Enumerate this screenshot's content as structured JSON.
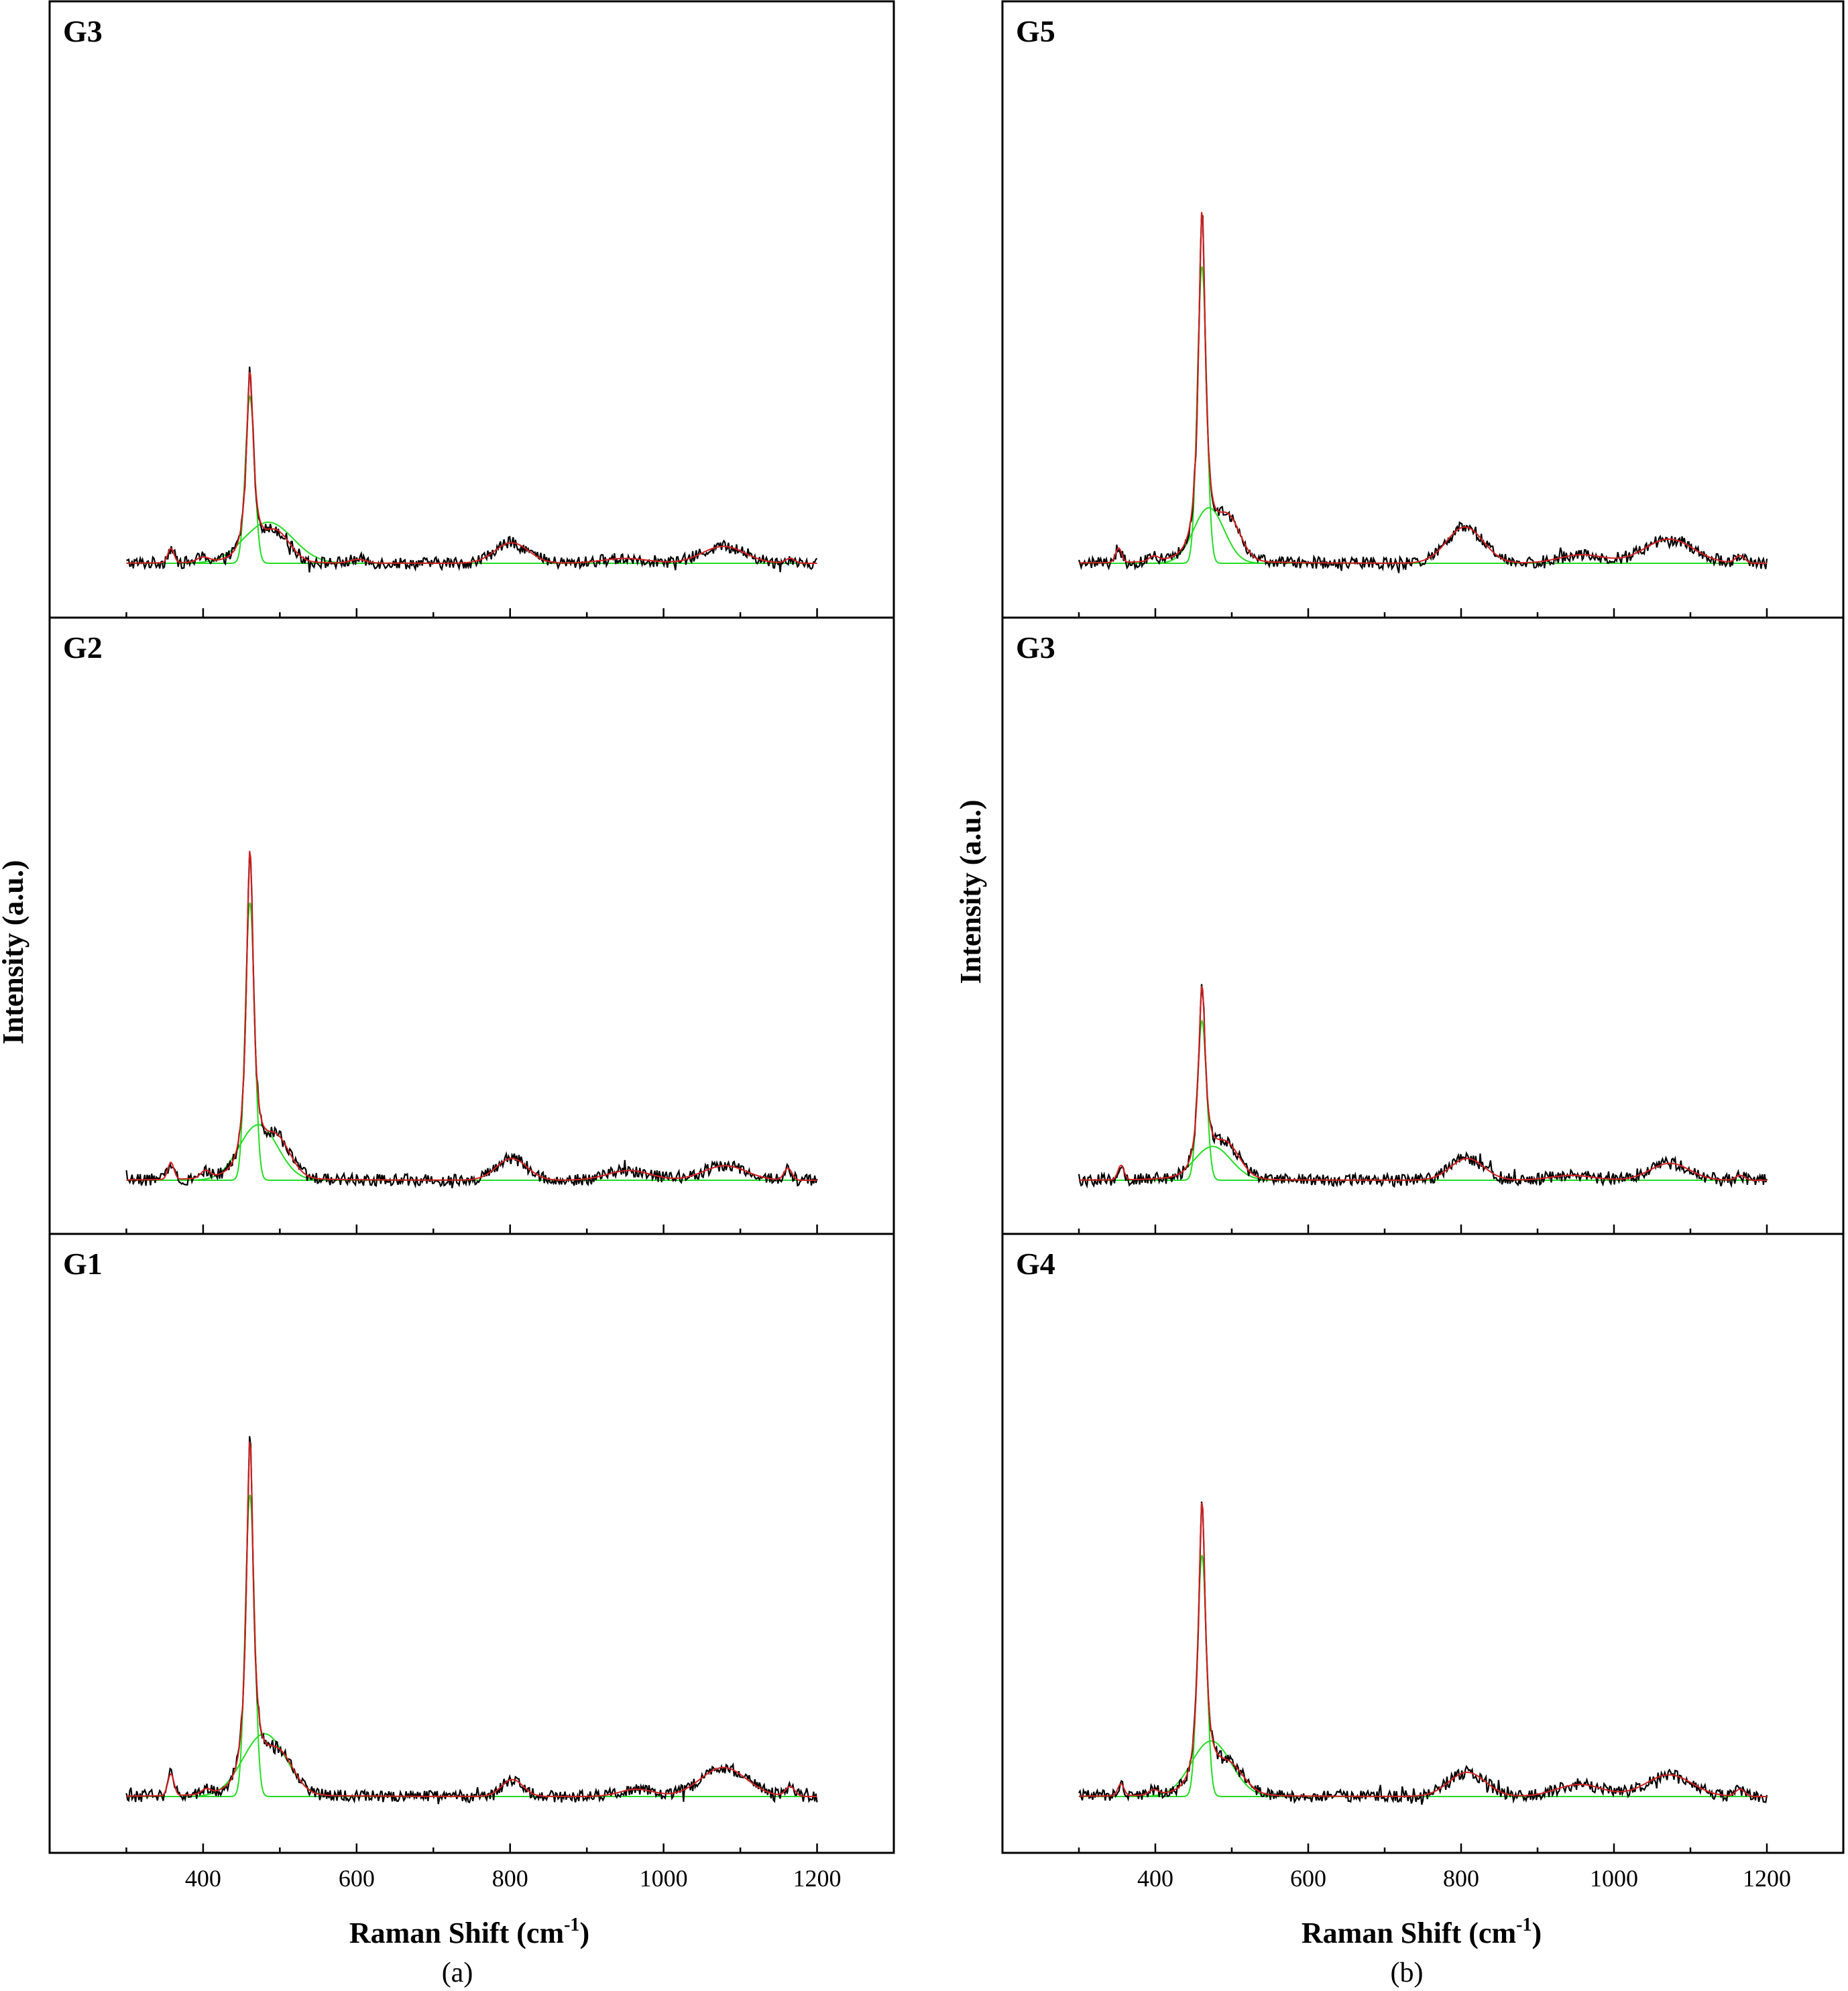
{
  "colors": {
    "measured": "#000000",
    "fit_envelope": "#d62020",
    "fit_components": "#22dd22",
    "frame": "#000000"
  },
  "chart_data": [
    {
      "type": "line",
      "figure": "(a)",
      "title": "",
      "xlabel": "Raman Shift (cm-1)",
      "xlabel_base": "Raman Shift (cm",
      "xlabel_sup": "-1",
      "xlabel_close": ")",
      "ylabel": "Intensity (a.u.)",
      "xlim": [
        200,
        1300
      ],
      "ylim": [
        0,
        1
      ],
      "x_ticks": [
        "400",
        "600",
        "800",
        "1000",
        "1200"
      ],
      "x_tick_values": [
        400,
        600,
        800,
        1000,
        1200
      ],
      "grid": false,
      "panels": [
        {
          "label": "G3",
          "series": [
            {
              "role": "measured",
              "peaks": [
                [
                  358,
                  0.06,
                  4
                ],
                [
                  400,
                  0.02,
                  8
                ],
                [
                  461,
                  0.78,
                  5.5
                ],
                [
                  495,
                  0.12,
                  18
                ],
                [
                  602,
                  0.015,
                  10
                ],
                [
                  802,
                  0.085,
                  22
                ],
                [
                  950,
                  0.02,
                  30
                ],
                [
                  1078,
                  0.07,
                  28
                ],
                [
                  1165,
                  0.02,
                  6
                ]
              ],
              "noise": 0.025
            },
            {
              "role": "fit",
              "components": [
                [
                  461,
                  0.69,
                  6
                ],
                [
                  485,
                  0.17,
                  32
                ]
              ]
            }
          ]
        },
        {
          "label": "G2",
          "series": [
            {
              "role": "measured",
              "peaks": [
                [
                  358,
                  0.07,
                  4
                ],
                [
                  403,
                  0.03,
                  6
                ],
                [
                  461,
                  1.35,
                  5.5
                ],
                [
                  495,
                  0.16,
                  18
                ],
                [
                  802,
                  0.09,
                  20
                ],
                [
                  955,
                  0.04,
                  28
                ],
                [
                  1080,
                  0.06,
                  28
                ],
                [
                  1162,
                  0.05,
                  5
                ]
              ],
              "noise": 0.025
            },
            {
              "role": "fit",
              "components": [
                [
                  461,
                  1.15,
                  6
                ],
                [
                  472,
                  0.23,
                  25
                ]
              ]
            }
          ]
        },
        {
          "label": "G1",
          "series": [
            {
              "role": "measured",
              "peaks": [
                [
                  358,
                  0.09,
                  4
                ],
                [
                  404,
                  0.02,
                  6
                ],
                [
                  461,
                  1.45,
                  5.5
                ],
                [
                  497,
                  0.17,
                  20
                ],
                [
                  803,
                  0.07,
                  14
                ],
                [
                  965,
                  0.03,
                  22
                ],
                [
                  1078,
                  0.12,
                  30
                ],
                [
                  1165,
                  0.04,
                  6
                ]
              ],
              "noise": 0.025
            },
            {
              "role": "fit",
              "components": [
                [
                  461,
                  1.25,
                  6
                ],
                [
                  480,
                  0.26,
                  28
                ]
              ]
            }
          ]
        }
      ]
    },
    {
      "type": "line",
      "figure": "(b)",
      "title": "",
      "xlabel": "Raman Shift (cm-1)",
      "xlabel_base": "Raman Shift (cm",
      "xlabel_sup": "-1",
      "xlabel_close": ")",
      "ylabel": "Intensity (a.u.)",
      "xlim": [
        200,
        1300
      ],
      "ylim": [
        0,
        1
      ],
      "x_ticks": [
        "400",
        "600",
        "800",
        "1000",
        "1200"
      ],
      "x_tick_values": [
        400,
        600,
        800,
        1000,
        1200
      ],
      "grid": false,
      "panels": [
        {
          "label": "G5",
          "series": [
            {
              "role": "measured",
              "peaks": [
                [
                  352,
                  0.06,
                  4
                ],
                [
                  398,
                  0.02,
                  6
                ],
                [
                  461,
                  1.45,
                  5.5
                ],
                [
                  495,
                  0.17,
                  16
                ],
                [
                  805,
                  0.15,
                  24
                ],
                [
                  958,
                  0.035,
                  30
                ],
                [
                  1072,
                  0.1,
                  32
                ],
                [
                  1165,
                  0.03,
                  6
                ]
              ],
              "noise": 0.025
            },
            {
              "role": "fit",
              "components": [
                [
                  461,
                  1.23,
                  6
                ],
                [
                  470,
                  0.23,
                  20
                ]
              ]
            }
          ]
        },
        {
          "label": "G3",
          "series": [
            {
              "role": "measured",
              "peaks": [
                [
                  355,
                  0.06,
                  4
                ],
                [
                  461,
                  0.78,
                  5.5
                ],
                [
                  492,
                  0.14,
                  18
                ],
                [
                  808,
                  0.09,
                  22
                ],
                [
                  945,
                  0.02,
                  28
                ],
                [
                  1073,
                  0.07,
                  26
                ],
                [
                  1165,
                  0.02,
                  6
                ]
              ],
              "noise": 0.025
            },
            {
              "role": "fit",
              "components": [
                [
                  461,
                  0.66,
                  6
                ],
                [
                  475,
                  0.14,
                  24
                ]
              ]
            }
          ]
        },
        {
          "label": "G4",
          "series": [
            {
              "role": "measured",
              "peaks": [
                [
                  355,
                  0.05,
                  4
                ],
                [
                  398,
                  0.02,
                  6
                ],
                [
                  461,
                  1.2,
                  5.5
                ],
                [
                  495,
                  0.12,
                  20
                ],
                [
                  808,
                  0.1,
                  24
                ],
                [
                  955,
                  0.05,
                  30
                ],
                [
                  1072,
                  0.09,
                  30
                ],
                [
                  1165,
                  0.03,
                  6
                ]
              ],
              "noise": 0.025
            },
            {
              "role": "fit",
              "components": [
                [
                  461,
                  1.0,
                  6
                ],
                [
                  473,
                  0.23,
                  26
                ]
              ]
            }
          ]
        }
      ]
    }
  ],
  "captions": [
    "(a)",
    "(b)"
  ]
}
